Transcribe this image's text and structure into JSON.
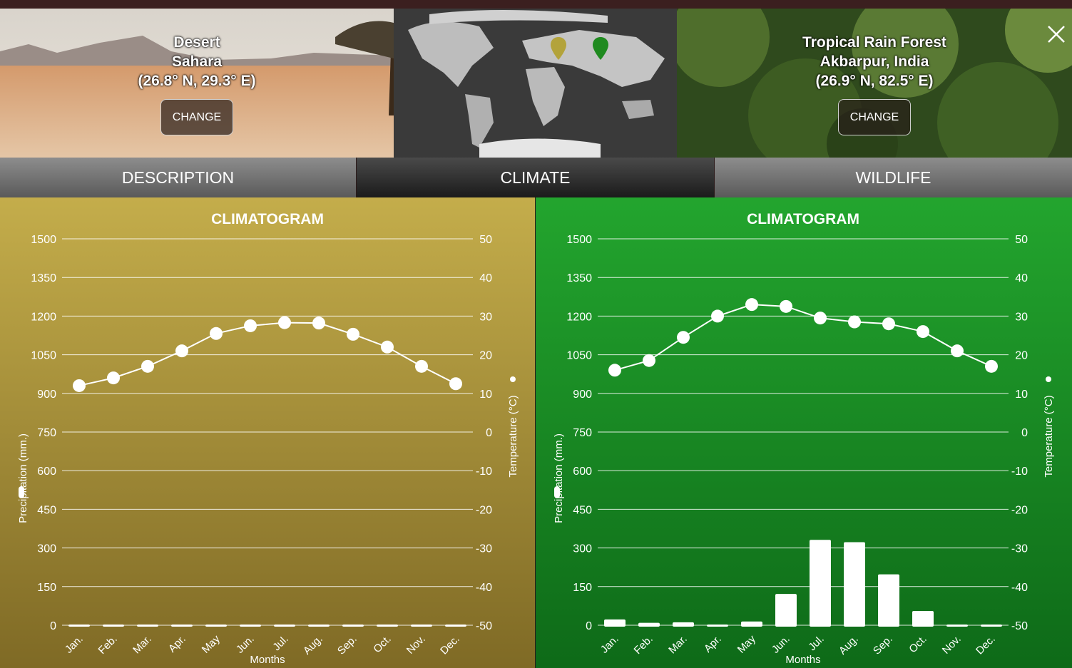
{
  "left_location": {
    "biome": "Desert",
    "place": "Sahara",
    "coords": "(26.8° N, 29.3° E)",
    "change_label": "CHANGE"
  },
  "right_location": {
    "biome": "Tropical Rain Forest",
    "place": "Akbarpur, India",
    "coords": "(26.9° N, 82.5° E)",
    "change_label": "CHANGE"
  },
  "map": {
    "marker_colors": [
      "#b3a33b",
      "#1f8a1f"
    ]
  },
  "tabs": [
    {
      "label": "DESCRIPTION",
      "active": false
    },
    {
      "label": "CLIMATE",
      "active": true
    },
    {
      "label": "WILDLIFE",
      "active": false
    }
  ],
  "colors": {
    "desert_top": "#c4ad4b",
    "desert_bottom": "#7f6a25",
    "forest_top": "#23a52e",
    "forest_bottom": "#0e6a18"
  },
  "chart_data": [
    {
      "type": "bar+line",
      "title": "CLIMATOGRAM",
      "xlabel": "Months",
      "ylabel_left": "Precipitation (mm.)",
      "ylabel_right": "Temperature (°C)",
      "categories": [
        "Jan.",
        "Feb.",
        "Mar.",
        "Apr.",
        "May",
        "Jun.",
        "Jul.",
        "Aug.",
        "Sep.",
        "Oct.",
        "Nov.",
        "Dec."
      ],
      "ylim_left": [
        0,
        1500
      ],
      "ylim_right": [
        -50,
        50
      ],
      "y_ticks_left": [
        "1500",
        "1350",
        "1200",
        "1050",
        "900",
        "750",
        "600",
        "450",
        "300",
        "150",
        "0"
      ],
      "y_ticks_right": [
        "50",
        "40",
        "30",
        "20",
        "10",
        "0",
        "-10",
        "-20",
        "-30",
        "-40",
        "-50"
      ],
      "precipitation": [
        1,
        1,
        1,
        1,
        1,
        1,
        1,
        1,
        1,
        1,
        1,
        1
      ],
      "temperature": [
        12,
        14,
        17,
        21,
        25.5,
        27.5,
        28.3,
        28.2,
        25.3,
        22,
        17,
        12.5
      ]
    },
    {
      "type": "bar+line",
      "title": "CLIMATOGRAM",
      "xlabel": "Months",
      "ylabel_left": "Precipitation (mm.)",
      "ylabel_right": "Temperature (°C)",
      "categories": [
        "Jan.",
        "Feb.",
        "Mar.",
        "Apr.",
        "May",
        "Jun.",
        "Jul.",
        "Aug.",
        "Sep.",
        "Oct.",
        "Nov.",
        "Dec."
      ],
      "ylim_left": [
        0,
        1500
      ],
      "ylim_right": [
        -50,
        50
      ],
      "y_ticks_left": [
        "1500",
        "1350",
        "1200",
        "1050",
        "900",
        "750",
        "600",
        "450",
        "300",
        "150",
        "0"
      ],
      "y_ticks_right": [
        "50",
        "40",
        "30",
        "20",
        "10",
        "0",
        "-10",
        "-20",
        "-30",
        "-40",
        "-50"
      ],
      "precipitation": [
        28,
        15,
        17,
        7,
        20,
        127,
        337,
        328,
        203,
        61,
        7,
        8
      ],
      "temperature": [
        16,
        18.5,
        24.5,
        30,
        33,
        32.5,
        29.5,
        28.5,
        28,
        26,
        21,
        17
      ]
    }
  ]
}
